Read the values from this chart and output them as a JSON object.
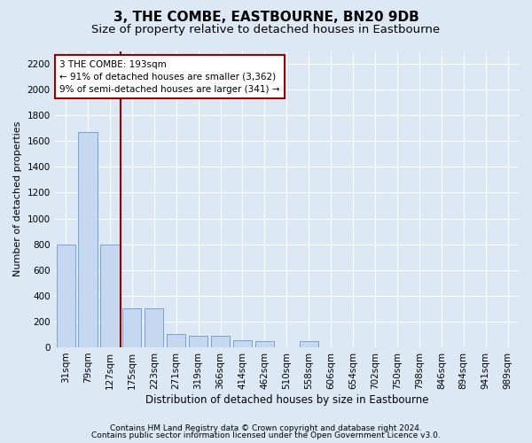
{
  "title": "3, THE COMBE, EASTBOURNE, BN20 9DB",
  "subtitle": "Size of property relative to detached houses in Eastbourne",
  "xlabel": "Distribution of detached houses by size in Eastbourne",
  "ylabel": "Number of detached properties",
  "footnote1": "Contains HM Land Registry data © Crown copyright and database right 2024.",
  "footnote2": "Contains public sector information licensed under the Open Government Licence v3.0.",
  "categories": [
    "31sqm",
    "79sqm",
    "127sqm",
    "175sqm",
    "223sqm",
    "271sqm",
    "319sqm",
    "366sqm",
    "414sqm",
    "462sqm",
    "510sqm",
    "558sqm",
    "606sqm",
    "654sqm",
    "702sqm",
    "750sqm",
    "798sqm",
    "846sqm",
    "894sqm",
    "941sqm",
    "989sqm"
  ],
  "values": [
    800,
    1670,
    800,
    305,
    305,
    100,
    90,
    90,
    55,
    50,
    0,
    50,
    0,
    0,
    0,
    0,
    0,
    0,
    0,
    0,
    0
  ],
  "ylim": [
    0,
    2300
  ],
  "yticks": [
    0,
    200,
    400,
    600,
    800,
    1000,
    1200,
    1400,
    1600,
    1800,
    2000,
    2200
  ],
  "bar_color": "#c5d8f0",
  "bar_edge_color": "#6699cc",
  "red_line_color": "#990000",
  "red_line_x": 2.5,
  "annotation_text": "3 THE COMBE: 193sqm\n← 91% of detached houses are smaller (3,362)\n9% of semi-detached houses are larger (341) →",
  "annotation_box_facecolor": "#ffffff",
  "annotation_box_edgecolor": "#990000",
  "background_color": "#dce9f5",
  "grid_color": "#ffffff",
  "title_fontsize": 11,
  "subtitle_fontsize": 9.5,
  "ylabel_fontsize": 8,
  "xlabel_fontsize": 8.5,
  "tick_fontsize": 7.5,
  "annotation_fontsize": 7.5,
  "footnote_fontsize": 6.5
}
